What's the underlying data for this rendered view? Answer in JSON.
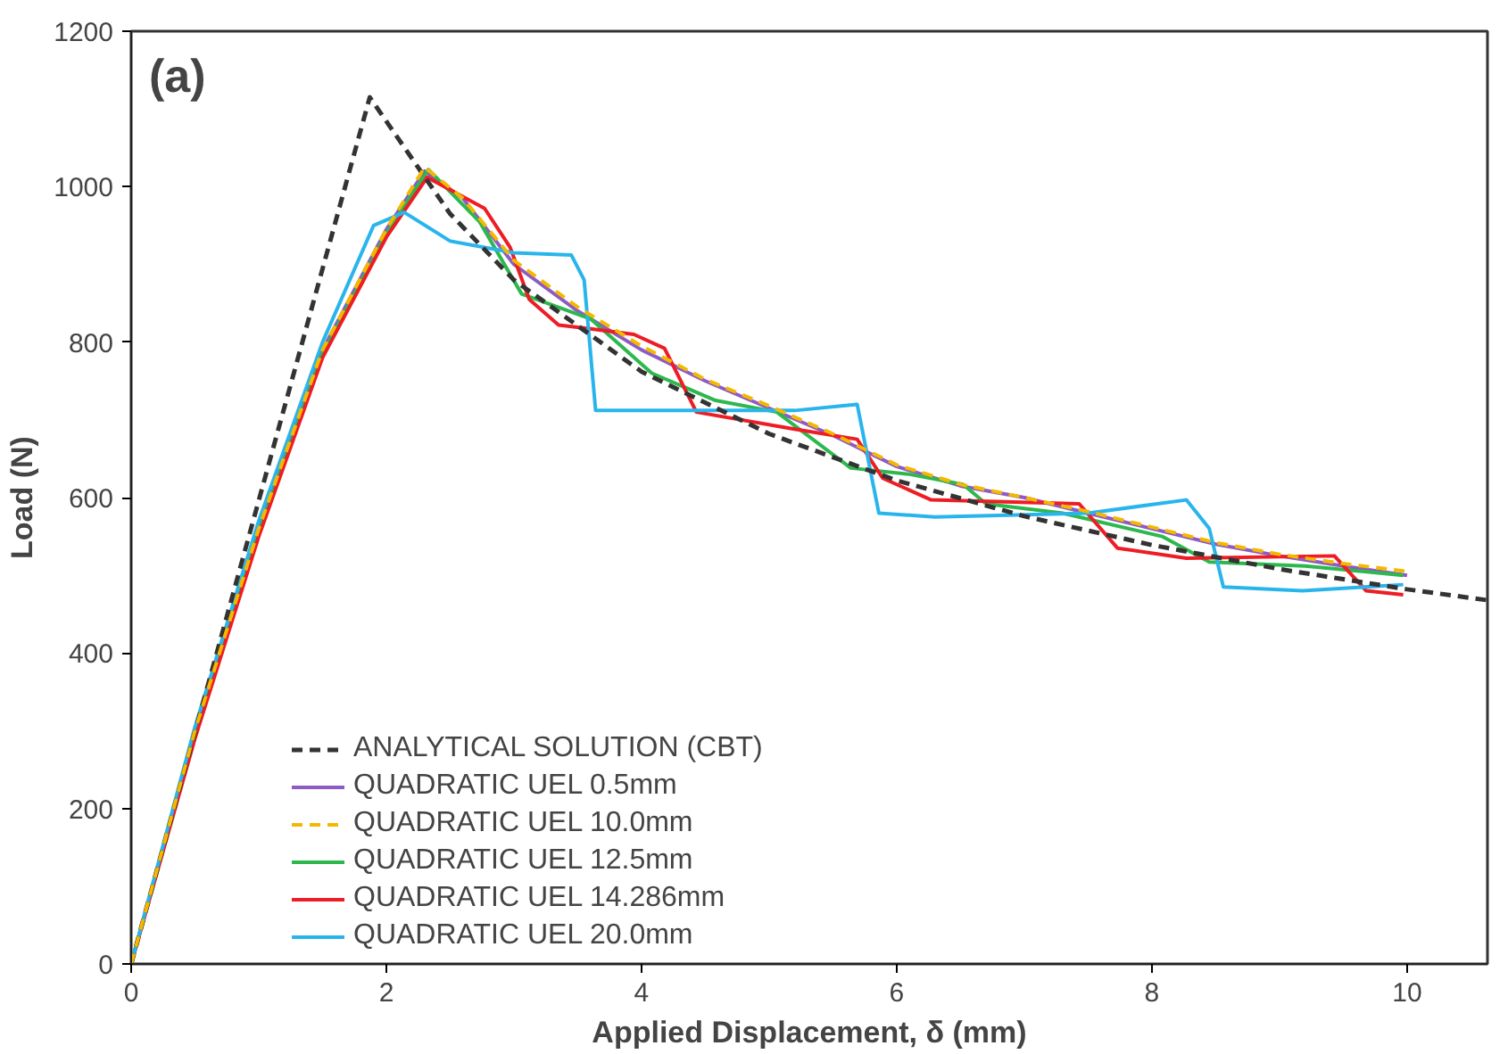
{
  "chart_data": {
    "type": "line",
    "xlabel": "Applied Displacement, δ (mm)",
    "ylabel": "Load (N)",
    "annotations": [
      "(a)"
    ],
    "xlim": [
      0,
      10.63
    ],
    "xticks": [
      0,
      2,
      4,
      6,
      8,
      10
    ],
    "ylim": [
      0,
      1200
    ],
    "yticks": [
      0,
      200,
      400,
      600,
      800,
      1000,
      1200
    ],
    "grid": false,
    "legend": "bottom left",
    "series": [
      {
        "name": "ANALYTICAL SOLUTION (CBT)",
        "color": "#333333",
        "line_style": "dashed",
        "x": [
          0,
          1.87,
          2.5,
          3,
          4,
          5,
          6,
          7,
          8,
          9,
          10,
          10.63
        ],
        "values": [
          0,
          1115,
          965,
          880,
          762,
          682,
          622,
          576,
          539,
          508,
          482,
          468
        ]
      },
      {
        "name": "QUADRATIC UEL 0.5mm",
        "color": "#8e5bc4",
        "line_style": "solid",
        "x": [
          0,
          0.5,
          1,
          1.5,
          2,
          2.3,
          2.6,
          3,
          3.5,
          4,
          4.5,
          5,
          5.5,
          6,
          6.5,
          7,
          7.5,
          8,
          8.5,
          9,
          9.5,
          10
        ],
        "values": [
          0,
          300,
          560,
          790,
          945,
          1020,
          985,
          900,
          840,
          790,
          750,
          715,
          680,
          640,
          615,
          600,
          580,
          560,
          540,
          525,
          512,
          500
        ]
      },
      {
        "name": "QUADRATIC UEL 10.0mm",
        "color": "#f5b800",
        "line_style": "dashed",
        "x": [
          0,
          0.5,
          1,
          1.5,
          2,
          2.3,
          2.6,
          3,
          3.5,
          4,
          4.5,
          5,
          5.5,
          6,
          6.5,
          7,
          7.5,
          8,
          8.5,
          9,
          9.5,
          10
        ],
        "values": [
          0,
          300,
          560,
          790,
          945,
          1025,
          985,
          905,
          845,
          795,
          752,
          718,
          682,
          642,
          617,
          600,
          582,
          562,
          542,
          527,
          515,
          505
        ]
      },
      {
        "name": "QUADRATIC UEL 12.5mm",
        "color": "#2db84d",
        "line_style": "solid",
        "x": [
          0,
          0.5,
          1,
          1.5,
          2,
          2.33,
          2.73,
          3.06,
          3.6,
          4.08,
          4.58,
          5.06,
          5.64,
          6.1,
          6.52,
          6.7,
          7.3,
          8.08,
          8.45,
          9.2,
          9.97
        ],
        "values": [
          0,
          295,
          555,
          785,
          940,
          1022,
          955,
          862,
          830,
          760,
          725,
          710,
          638,
          630,
          617,
          592,
          580,
          550,
          517,
          512,
          500
        ]
      },
      {
        "name": "QUADRATIC UEL 14.286mm",
        "color": "#ee1c25",
        "line_style": "solid",
        "x": [
          0,
          0.5,
          1,
          1.5,
          2,
          2.32,
          2.77,
          2.97,
          3.12,
          3.35,
          3.6,
          3.94,
          4.18,
          4.43,
          5.2,
          5.69,
          5.89,
          6.27,
          7.43,
          7.73,
          8.27,
          9.43,
          9.68,
          9.97
        ],
        "values": [
          0,
          290,
          550,
          780,
          935,
          1012,
          972,
          922,
          855,
          822,
          817,
          810,
          792,
          710,
          688,
          675,
          625,
          597,
          592,
          535,
          522,
          525,
          480,
          475
        ]
      },
      {
        "name": "QUADRATIC UEL 20.0mm",
        "color": "#29b5ec",
        "line_style": "solid",
        "x": [
          0,
          0.5,
          1,
          1.5,
          1.9,
          2.14,
          2.5,
          3,
          3.45,
          3.55,
          3.64,
          4.08,
          5.2,
          5.69,
          5.86,
          6.3,
          7.5,
          8.27,
          8.45,
          8.56,
          9.18,
          9.97
        ],
        "values": [
          0,
          305,
          570,
          800,
          950,
          967,
          930,
          915,
          912,
          880,
          712,
          712,
          712,
          720,
          580,
          575,
          580,
          597,
          560,
          485,
          480,
          488
        ]
      }
    ]
  }
}
